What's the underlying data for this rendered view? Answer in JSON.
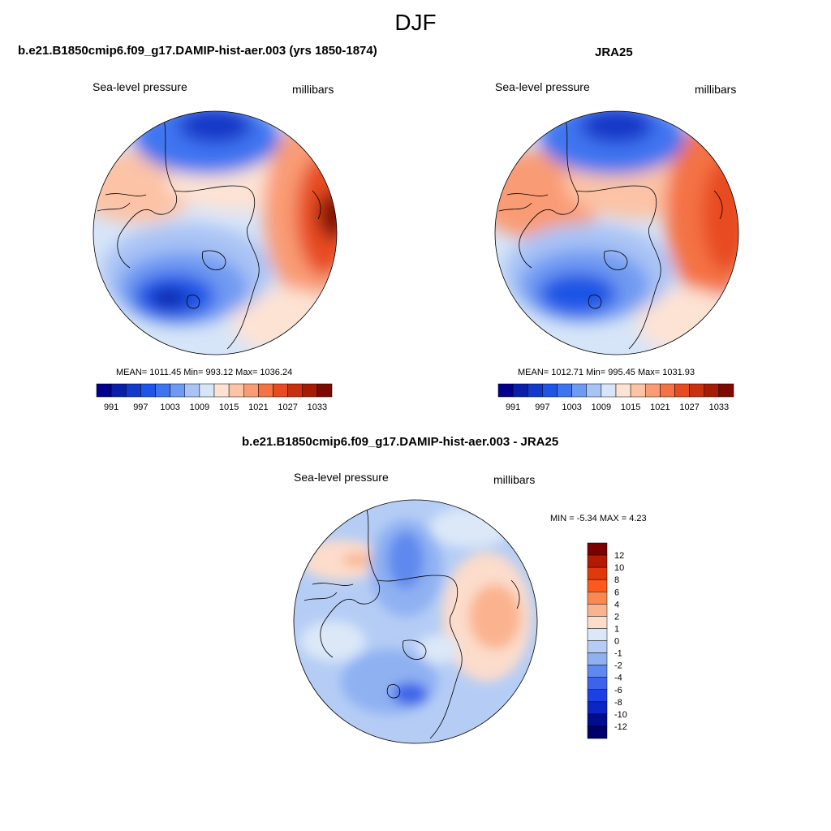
{
  "season": "DJF",
  "panel_left": {
    "title": "b.e21.B1850cmip6.f09_g17.DAMIP-hist-aer.003 (yrs 1850-1874)",
    "left_label": "Sea-level pressure",
    "right_label": "millibars",
    "stats": "MEAN= 1011.45  Min= 993.12  Max= 1036.24"
  },
  "panel_right": {
    "title": "JRA25",
    "left_label": "Sea-level pressure",
    "right_label": "millibars",
    "stats": "MEAN= 1012.71  Min= 995.45  Max= 1031.93"
  },
  "panel_diff": {
    "title": "b.e21.B1850cmip6.f09_g17.DAMIP-hist-aer.003 - JRA25",
    "left_label": "Sea-level pressure",
    "right_label": "millibars",
    "stats": "MIN =  -5.34 MAX =   4.23"
  },
  "slp_colorbar": {
    "colors": [
      "#00008c",
      "#0a1fa8",
      "#1339c8",
      "#1f55e6",
      "#3f74f0",
      "#6f9af2",
      "#a9c3f5",
      "#d7e5f8",
      "#fde3d4",
      "#fcc3a6",
      "#f99b74",
      "#f47245",
      "#e84b22",
      "#c9300f",
      "#a41c05",
      "#7c0a00"
    ],
    "labels": [
      "991",
      "997",
      "1003",
      "1009",
      "1015",
      "1021",
      "1027",
      "1033"
    ]
  },
  "diff_colorbar": {
    "colors": [
      "#7a0000",
      "#b31a00",
      "#de3a0a",
      "#fa5a1c",
      "#fb8850",
      "#fbb38f",
      "#fcdccb",
      "#dce8f8",
      "#b5cdf5",
      "#8fb1f2",
      "#5f89ee",
      "#3c63ea",
      "#1d40e3",
      "#0c25c4",
      "#000d8f",
      "#00006a"
    ],
    "labels": [
      "12",
      "10",
      "8",
      "6",
      "4",
      "2",
      "1",
      "0",
      "-1",
      "-2",
      "-4",
      "-6",
      "-8",
      "-10",
      "-12"
    ]
  }
}
